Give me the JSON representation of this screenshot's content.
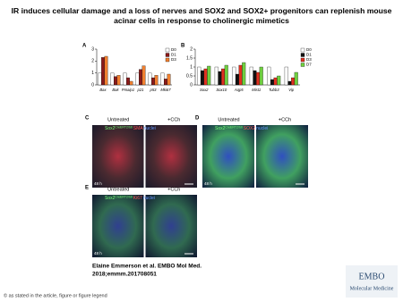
{
  "header": {
    "title": "IR induces cellular damage and a loss of nerves and SOX2 and SOX2+ progenitors can replenish mouse acinar cells in response to cholinergic mimetics"
  },
  "panel_a": {
    "label": "A",
    "chart_data": {
      "type": "bar",
      "categories": [
        "Bax",
        "Bak",
        "Pmaip1",
        "p21",
        "p53",
        "Mki67"
      ],
      "series": [
        {
          "name": "D0",
          "color": "#ffffff",
          "values": [
            1,
            1,
            1,
            1,
            1,
            1
          ]
        },
        {
          "name": "D1",
          "color": "#8b1a1a",
          "values": [
            2.3,
            0.7,
            0.6,
            1.3,
            0.6,
            0.5
          ]
        },
        {
          "name": "D3",
          "color": "#f08030",
          "values": [
            2.4,
            0.8,
            0.3,
            1.6,
            0.8,
            0.9
          ]
        }
      ],
      "ylim": [
        0,
        3
      ],
      "yticks": [
        0,
        1,
        2,
        3
      ]
    }
  },
  "panel_b": {
    "label": "B",
    "chart_data": {
      "type": "bar",
      "categories": [
        "Sox2",
        "Sox10",
        "Aqp5",
        "Mist1",
        "Tubb3",
        "Vip"
      ],
      "series": [
        {
          "name": "D0",
          "color": "#ffffff",
          "values": [
            1,
            1,
            1,
            1,
            1,
            1
          ]
        },
        {
          "name": "D1",
          "color": "#111111",
          "values": [
            0.8,
            0.75,
            0.6,
            0.8,
            0.3,
            0.2
          ]
        },
        {
          "name": "D3",
          "color": "#e03020",
          "values": [
            0.9,
            0.9,
            1.1,
            0.7,
            0.4,
            0.4
          ]
        },
        {
          "name": "D7",
          "color": "#70d040",
          "values": [
            1.05,
            1.1,
            1.25,
            1.0,
            0.5,
            0.7
          ]
        }
      ],
      "ylim": [
        0,
        2
      ],
      "yticks": [
        0,
        0.5,
        1,
        1.5,
        2
      ]
    }
  },
  "panel_c": {
    "label": "C",
    "columns": [
      "Untreated",
      "+CCh"
    ],
    "stain": [
      "Sox2",
      "CreERT2/tdt",
      "SMA",
      "nuclei"
    ],
    "time": "48 h"
  },
  "panel_d": {
    "label": "D",
    "columns": [
      "Untreated",
      "+CCh"
    ],
    "stain": [
      "Sox2",
      "CreERT2/tdt",
      "SOX2",
      "nuclei"
    ],
    "time": "48 h"
  },
  "panel_e": {
    "label": "E",
    "columns": [
      "Untreated",
      "+CCh"
    ],
    "stain": [
      "Sox2",
      "CreERT2/tdt",
      "Ki67",
      "nuclei"
    ],
    "time": "48 h"
  },
  "citation": [
    "Elaine Emmerson et al. EMBO Mol Med.",
    "2018;emmm.201708051"
  ],
  "footer": "© as stated in the article, figure or figure legend",
  "logo": [
    "EMBO",
    "Molecular Medicine"
  ]
}
